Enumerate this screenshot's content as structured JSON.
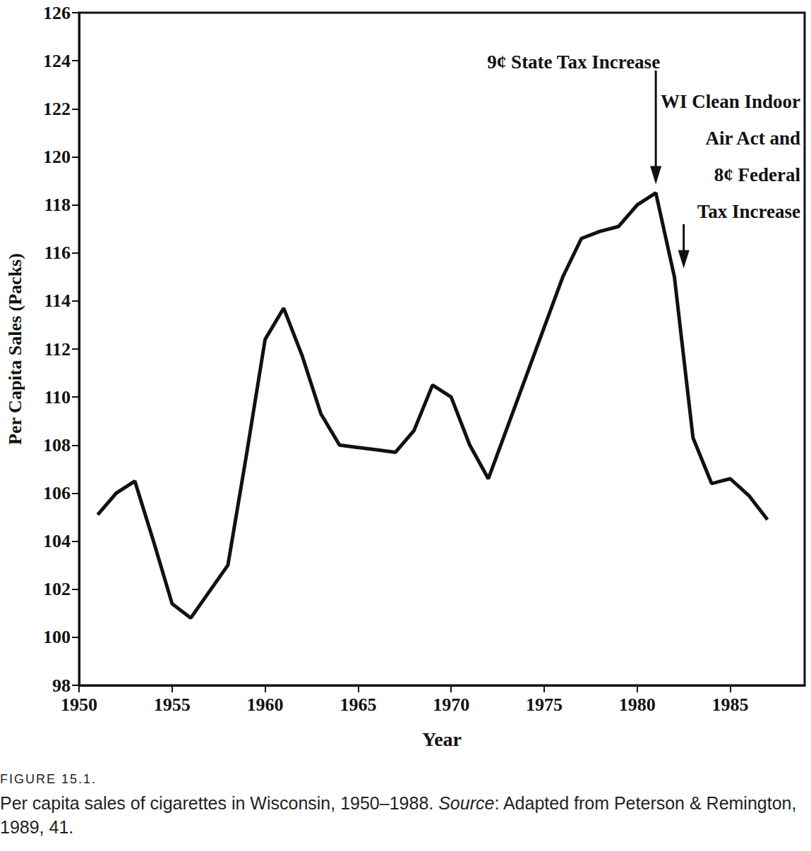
{
  "chart_data": {
    "type": "line",
    "x_label": "Year",
    "y_label": "Per Capita Sales (Packs)",
    "figure_label": "FIGURE 15.1.",
    "caption": "Per capita sales of cigarettes in Wisconsin, 1950–1988.",
    "source": "Source: Adapted from Peterson & Remington, 1989, 41.",
    "x": [
      1951,
      1952,
      1953,
      1954,
      1955,
      1956,
      1957,
      1958,
      1959,
      1960,
      1961,
      1962,
      1963,
      1964,
      1965,
      1966,
      1967,
      1968,
      1969,
      1970,
      1971,
      1972,
      1973,
      1974,
      1975,
      1976,
      1977,
      1978,
      1979,
      1980,
      1981,
      1982,
      1983,
      1984,
      1985,
      1986,
      1987
    ],
    "values": [
      105.1,
      106.0,
      106.5,
      104.0,
      101.4,
      100.8,
      101.9,
      103.0,
      107.6,
      112.4,
      113.7,
      111.7,
      109.3,
      108.0,
      107.9,
      107.8,
      107.7,
      108.6,
      110.5,
      110.0,
      108.0,
      106.6,
      108.7,
      110.8,
      112.9,
      115.0,
      116.6,
      116.9,
      117.1,
      118.0,
      118.5,
      115.0,
      108.3,
      106.4,
      106.6,
      105.9,
      104.9
    ],
    "color": "#111111",
    "xlim": [
      1950,
      1989
    ],
    "xticks": [
      1950,
      1955,
      1960,
      1965,
      1970,
      1975,
      1980,
      1985
    ],
    "ylim": [
      98,
      126
    ],
    "yticks": [
      98,
      100,
      102,
      104,
      106,
      108,
      110,
      112,
      114,
      116,
      118,
      120,
      122,
      124,
      126
    ],
    "grid": false,
    "annotations": [
      {
        "text": "9¢ State Tax Increase",
        "x": 1981
      },
      {
        "text": "WI Clean Indoor\nAir Act and\n8¢ Federal\nTax Increase",
        "x": 1982.5
      }
    ]
  }
}
